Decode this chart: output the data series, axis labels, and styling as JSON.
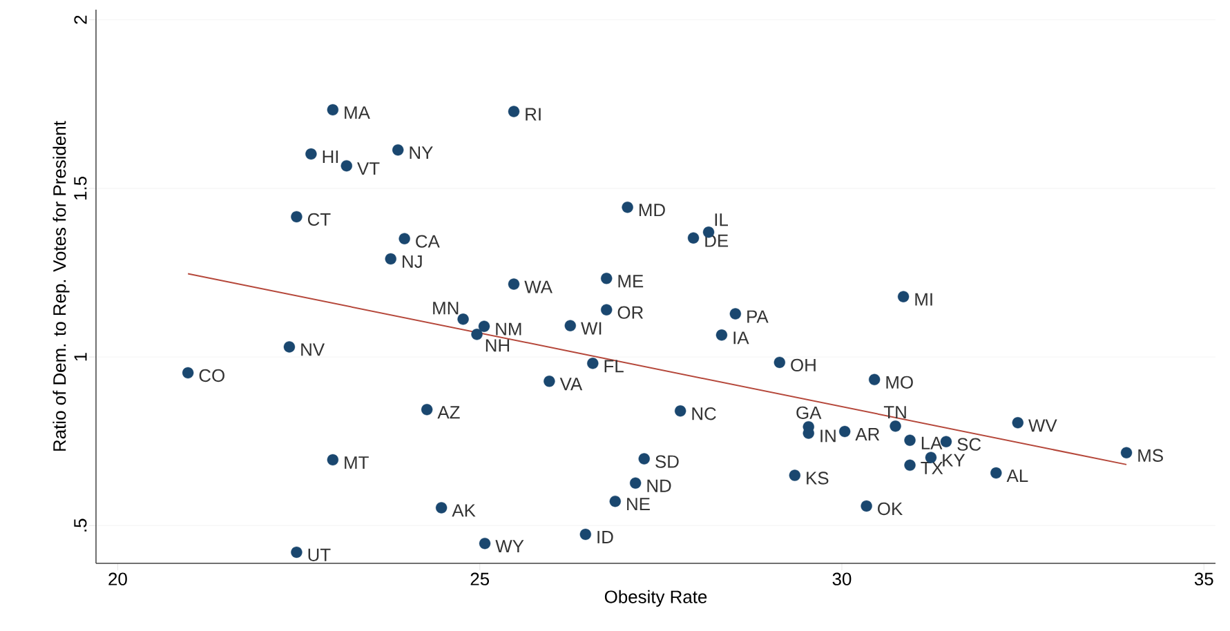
{
  "chart_data": {
    "type": "scatter",
    "xlabel": "Obesity Rate",
    "ylabel": "Ratio of Dem. to Rep. Votes for President",
    "xlim": [
      19.7,
      35.16
    ],
    "ylim": [
      0.388,
      2.03
    ],
    "xticks": [
      20,
      25,
      30,
      35
    ],
    "yticks": [
      {
        "value": 0.5,
        "label": ".5"
      },
      {
        "value": 1,
        "label": "1"
      },
      {
        "value": 1.5,
        "label": "1.5"
      },
      {
        "value": 2,
        "label": "2"
      }
    ],
    "grid": "y",
    "marker": "circle",
    "series": [
      {
        "type": "scatter",
        "color": "#1a476f",
        "x": [
          22.97,
          25.47,
          22.67,
          23.87,
          23.16,
          22.47,
          27.04,
          28.16,
          27.95,
          23.96,
          23.77,
          25.47,
          26.75,
          30.85,
          26.75,
          28.53,
          24.77,
          25.06,
          26.25,
          24.96,
          28.34,
          22.37,
          29.14,
          26.56,
          20.97,
          30.45,
          25.96,
          24.27,
          27.77,
          29.54,
          30.74,
          30.04,
          29.54,
          32.43,
          30.94,
          31.44,
          33.93,
          22.97,
          27.27,
          31.23,
          30.94,
          32.13,
          29.35,
          27.15,
          26.87,
          24.47,
          30.34,
          26.46,
          25.07,
          22.47
        ],
        "values": [
          1.733,
          1.728,
          1.602,
          1.614,
          1.567,
          1.416,
          1.444,
          1.37,
          1.353,
          1.351,
          1.291,
          1.216,
          1.233,
          1.179,
          1.14,
          1.128,
          1.112,
          1.091,
          1.093,
          1.067,
          1.065,
          1.03,
          0.984,
          0.981,
          0.953,
          0.933,
          0.928,
          0.844,
          0.84,
          0.793,
          0.795,
          0.779,
          0.774,
          0.805,
          0.753,
          0.749,
          0.716,
          0.695,
          0.698,
          0.702,
          0.679,
          0.656,
          0.649,
          0.626,
          0.572,
          0.553,
          0.558,
          0.474,
          0.447,
          0.421
        ]
      },
      {
        "type": "line",
        "color": "#b5473a",
        "line_style": "solid",
        "marker": "none",
        "x": [
          20.97,
          33.93
        ],
        "values": [
          1.247,
          0.681
        ]
      }
    ],
    "annotations": [
      {
        "text": "MA",
        "x": 22.97,
        "y": 1.733
      },
      {
        "text": "RI",
        "x": 25.47,
        "y": 1.728
      },
      {
        "text": "HI",
        "x": 22.67,
        "y": 1.602
      },
      {
        "text": "NY",
        "x": 23.87,
        "y": 1.614
      },
      {
        "text": "VT",
        "x": 23.16,
        "y": 1.567
      },
      {
        "text": "CT",
        "x": 22.47,
        "y": 1.416
      },
      {
        "text": "MD",
        "x": 27.04,
        "y": 1.444
      },
      {
        "text": "IL",
        "x": 28.16,
        "y": 1.37
      },
      {
        "text": "DE",
        "x": 27.95,
        "y": 1.353
      },
      {
        "text": "CA",
        "x": 23.96,
        "y": 1.351
      },
      {
        "text": "NJ",
        "x": 23.77,
        "y": 1.291
      },
      {
        "text": "WA",
        "x": 25.47,
        "y": 1.216
      },
      {
        "text": "ME",
        "x": 26.75,
        "y": 1.233
      },
      {
        "text": "MI",
        "x": 30.85,
        "y": 1.179
      },
      {
        "text": "OR",
        "x": 26.75,
        "y": 1.14
      },
      {
        "text": "PA",
        "x": 28.53,
        "y": 1.128
      },
      {
        "text": "MN",
        "x": 24.77,
        "y": 1.112
      },
      {
        "text": "NM",
        "x": 25.06,
        "y": 1.091
      },
      {
        "text": "WI",
        "x": 26.25,
        "y": 1.093
      },
      {
        "text": "NH",
        "x": 24.96,
        "y": 1.067
      },
      {
        "text": "IA",
        "x": 28.34,
        "y": 1.065
      },
      {
        "text": "NV",
        "x": 22.37,
        "y": 1.03
      },
      {
        "text": "OH",
        "x": 29.14,
        "y": 0.984
      },
      {
        "text": "FL",
        "x": 26.56,
        "y": 0.981
      },
      {
        "text": "CO",
        "x": 20.97,
        "y": 0.953
      },
      {
        "text": "MO",
        "x": 30.45,
        "y": 0.933
      },
      {
        "text": "VA",
        "x": 25.96,
        "y": 0.928
      },
      {
        "text": "AZ",
        "x": 24.27,
        "y": 0.844
      },
      {
        "text": "NC",
        "x": 27.77,
        "y": 0.84
      },
      {
        "text": "GA",
        "x": 29.54,
        "y": 0.793
      },
      {
        "text": "TN",
        "x": 30.74,
        "y": 0.795
      },
      {
        "text": "AR",
        "x": 30.04,
        "y": 0.779
      },
      {
        "text": "IN",
        "x": 29.54,
        "y": 0.774
      },
      {
        "text": "WV",
        "x": 32.43,
        "y": 0.805
      },
      {
        "text": "LA",
        "x": 30.94,
        "y": 0.753
      },
      {
        "text": "SC",
        "x": 31.44,
        "y": 0.749
      },
      {
        "text": "MS",
        "x": 33.93,
        "y": 0.716
      },
      {
        "text": "MT",
        "x": 22.97,
        "y": 0.695
      },
      {
        "text": "SD",
        "x": 27.27,
        "y": 0.698
      },
      {
        "text": "KY",
        "x": 31.23,
        "y": 0.702
      },
      {
        "text": "TX",
        "x": 30.94,
        "y": 0.679
      },
      {
        "text": "AL",
        "x": 32.13,
        "y": 0.656
      },
      {
        "text": "KS",
        "x": 29.35,
        "y": 0.649
      },
      {
        "text": "ND",
        "x": 27.15,
        "y": 0.626
      },
      {
        "text": "NE",
        "x": 26.87,
        "y": 0.572
      },
      {
        "text": "AK",
        "x": 24.47,
        "y": 0.553
      },
      {
        "text": "OK",
        "x": 30.34,
        "y": 0.558
      },
      {
        "text": "ID",
        "x": 26.46,
        "y": 0.474
      },
      {
        "text": "WY",
        "x": 25.07,
        "y": 0.447
      },
      {
        "text": "UT",
        "x": 22.47,
        "y": 0.421
      }
    ]
  }
}
